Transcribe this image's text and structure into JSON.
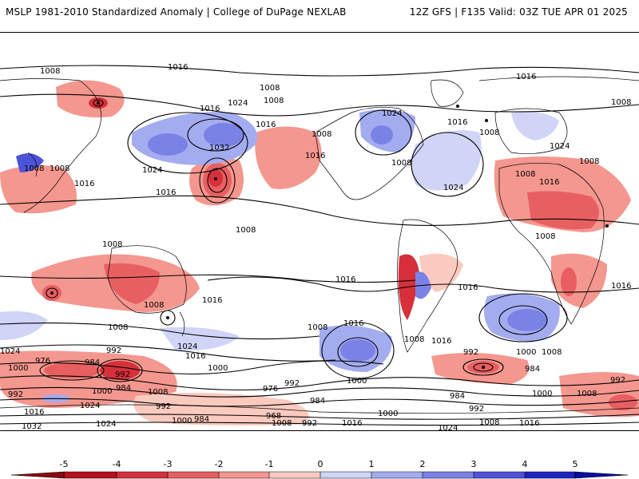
{
  "header": {
    "title_left": "MSLP 1981-2010 Standardized Anomaly | College of DuPage NEXLAB",
    "title_right": "12Z GFS | F135 Valid: 03Z TUE APR 01 2025"
  },
  "map": {
    "isobar_labels": [
      "1008",
      "1016",
      "1024",
      "1032",
      "992",
      "984",
      "976",
      "968",
      "1000"
    ],
    "anomaly_colors": {
      "neg5": "#b5101b",
      "neg4": "#d6303a",
      "neg3": "#e85f62",
      "neg2": "#f4978f",
      "neg1": "#fbcabf",
      "zero": "#ffffff",
      "pos1": "#d0d4f6",
      "pos2": "#a4acf0",
      "pos3": "#7b82e6",
      "pos4": "#4d54d8",
      "pos5": "#1e22c2"
    }
  },
  "colorbar": {
    "ticks": [
      "-5",
      "-4",
      "-3",
      "-2",
      "-1",
      "0",
      "1",
      "2",
      "3",
      "4",
      "5"
    ]
  }
}
